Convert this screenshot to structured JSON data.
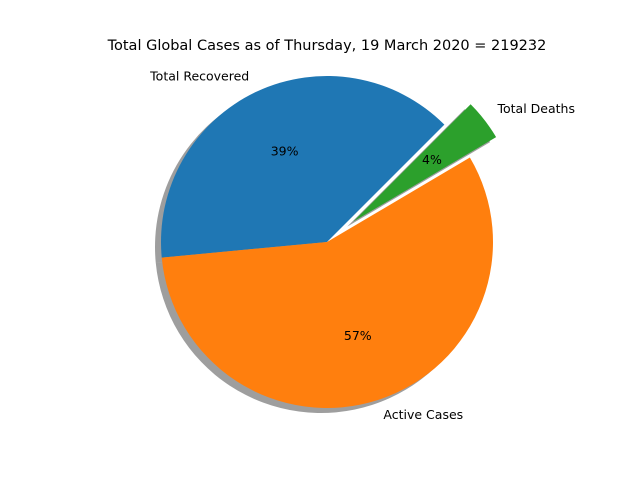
{
  "chart_data": {
    "type": "pie",
    "title": "Total Global Cases as of Thursday, 19 March 2020 = 219232",
    "categories": [
      "Total Recovered",
      "Active Cases",
      "Total Deaths"
    ],
    "values": [
      39,
      57,
      4
    ],
    "percent_labels": [
      "39%",
      "57%",
      "4%"
    ],
    "colors": [
      "#1f77b4",
      "#ff7f0e",
      "#2ca02c"
    ],
    "exploded": [
      "Total Deaths"
    ],
    "shadow": true
  }
}
